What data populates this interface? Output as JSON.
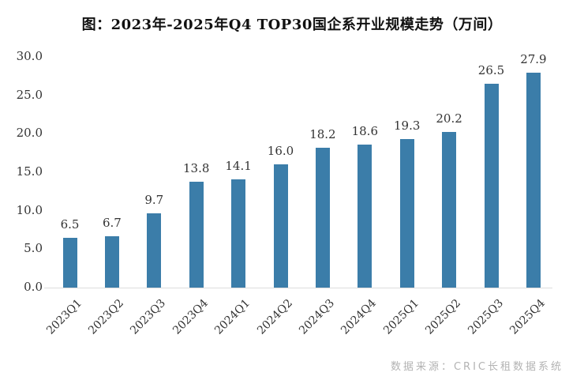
{
  "chart_data": {
    "type": "bar",
    "title": "图：2023年-2025年Q4 TOP30国企系开业规模走势（万间）",
    "categories": [
      "2023Q1",
      "2023Q2",
      "2023Q3",
      "2023Q4",
      "2024Q1",
      "2024Q2",
      "2024Q3",
      "2024Q4",
      "2025Q1",
      "2025Q2",
      "2025Q3",
      "2025Q4"
    ],
    "values": [
      6.5,
      6.7,
      9.7,
      13.8,
      14.1,
      16.0,
      18.2,
      18.6,
      19.3,
      20.2,
      26.5,
      27.9
    ],
    "xlabel": "",
    "ylabel": "",
    "ylim": [
      0,
      30
    ],
    "yticks": [
      0.0,
      5.0,
      10.0,
      15.0,
      20.0,
      25.0,
      30.0
    ],
    "grid": false,
    "legend_position": "none",
    "bar_color": "#3B7DA9",
    "axis_line_color": "#dcdcdc",
    "label_color": "#333333"
  },
  "source_note": "数据来源：CRIC长租数据系统"
}
